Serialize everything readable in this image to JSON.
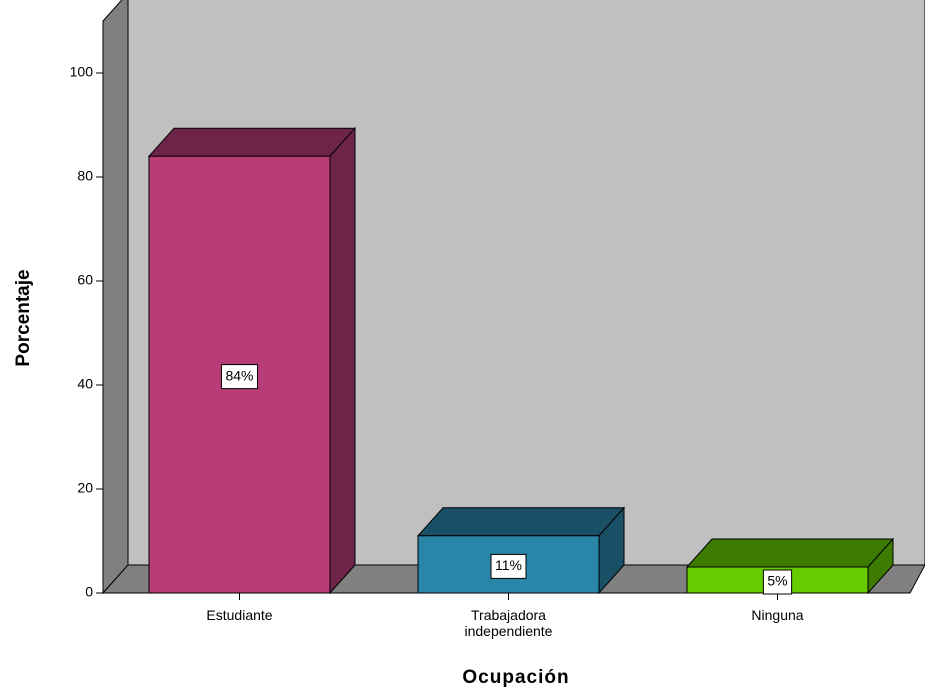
{
  "chart_data": {
    "type": "bar3d",
    "x_label": "Ocupación",
    "y_label": "Porcentaje",
    "categories": [
      "Estudiante",
      "Trabajadora independiente",
      "Ninguna"
    ],
    "values": [
      84,
      11,
      5
    ],
    "value_labels": [
      "84%",
      "11%",
      "5%"
    ],
    "colors": [
      "#b83c78",
      "#2a86a8",
      "#66cc00"
    ],
    "ylim": [
      0,
      110
    ],
    "yticks": [
      0,
      20,
      40,
      60,
      80,
      100
    ]
  }
}
